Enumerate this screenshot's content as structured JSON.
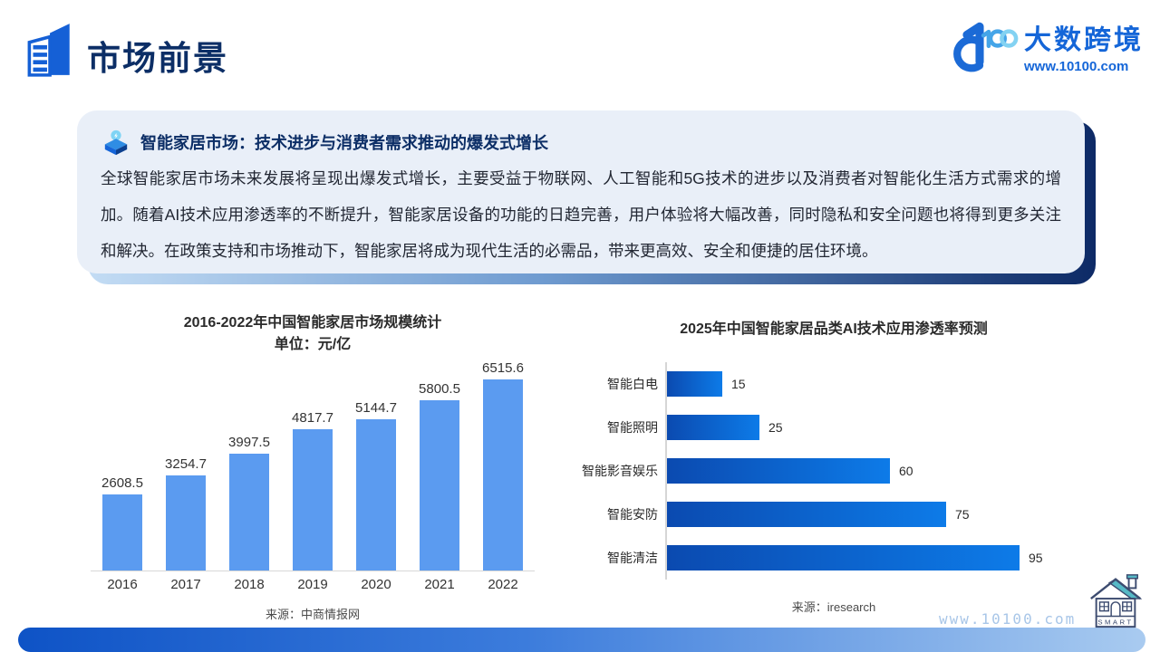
{
  "header": {
    "title": "市场前景",
    "brand_name": "大数跨境",
    "brand_url": "www.10100.com"
  },
  "callout": {
    "title": "智能家居市场：技术进步与消费者需求推动的爆发式增长",
    "body": "全球智能家居市场未来发展将呈现出爆发式增长，主要受益于物联网、人工智能和5G技术的进步以及消费者对智能化生活方式需求的增加。随着AI技术应用渗透率的不断提升，智能家居设备的功能的日趋完善，用户体验将大幅改善，同时隐私和安全问题也将得到更多关注和解决。在政策支持和市场推动下，智能家居将成为现代生活的必需品，带来更高效、安全和便捷的居住环境。"
  },
  "chart_data": [
    {
      "type": "bar",
      "orientation": "vertical",
      "title": "2016-2022年中国智能家居市场规模统计",
      "subtitle": "单位：元/亿",
      "categories": [
        "2016",
        "2017",
        "2018",
        "2019",
        "2020",
        "2021",
        "2022"
      ],
      "values": [
        2608.5,
        3254.7,
        3997.5,
        4817.7,
        5144.7,
        5800.5,
        6515.6
      ],
      "ylim": [
        0,
        6515.6
      ],
      "bar_color": "#5B9BF0",
      "grid": false,
      "source": "来源：中商情报网"
    },
    {
      "type": "bar",
      "orientation": "horizontal",
      "title": "2025年中国智能家居品类AI技术应用渗透率预测",
      "categories": [
        "智能白电",
        "智能照明",
        "智能影音娱乐",
        "智能安防",
        "智能清洁"
      ],
      "values": [
        15,
        25,
        60,
        75,
        95
      ],
      "xlim": [
        0,
        100
      ],
      "bar_gradient": [
        "#0b4ab0",
        "#0d7be8"
      ],
      "grid": false,
      "source": "来源：iresearch"
    }
  ],
  "footer": {
    "watermark": "www.10100.com",
    "house_label": "SMART"
  },
  "colors": {
    "accent_dark_navy": "#0c2e66",
    "brand_blue": "#1566d8",
    "left_bar_blue": "#5B9BF0",
    "callout_bg": "#e9eff8",
    "bottom_bar_gradient": [
      "#0e53c6",
      "#a9cbf0"
    ]
  }
}
